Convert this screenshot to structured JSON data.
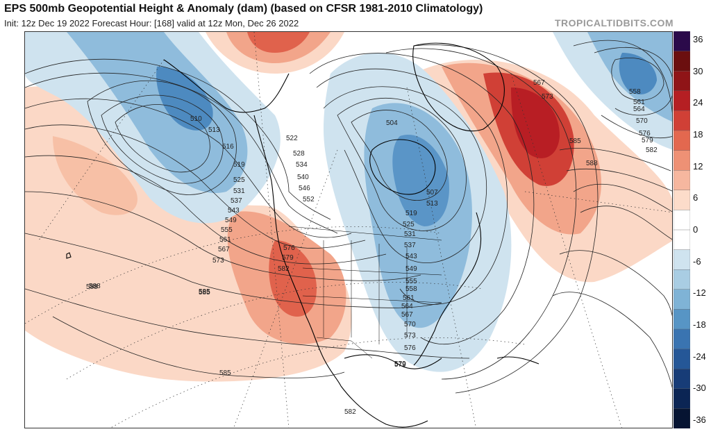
{
  "header": {
    "title": "EPS 500mb Geopotential Height & Anomaly (dam) (based on CFSR 1981-2010 Climatology)",
    "subtitle": "Init: 12z Dec 19 2022   Forecast Hour: [168]   valid at 12z Mon, Dec 26 2022",
    "brand": "TROPICALTIDBITS.COM"
  },
  "colorbar": {
    "labels": [
      "36",
      "30",
      "24",
      "18",
      "12",
      "6",
      "0",
      "-6",
      "-12",
      "-18",
      "-24",
      "-30",
      "-36"
    ],
    "colors": [
      "#2b0a4a",
      "#6b0f0f",
      "#8f1417",
      "#b51f23",
      "#d04036",
      "#e3684f",
      "#ee9175",
      "#f6b79f",
      "#fcdcca",
      "#ffffff",
      "#ffffff",
      "#cfe3ef",
      "#a9cde3",
      "#7fb3d6",
      "#5795c5",
      "#3a74b1",
      "#255797",
      "#173c77",
      "#0b2554",
      "#061432"
    ]
  },
  "contours": {
    "labels": [
      "510",
      "513",
      "516",
      "519",
      "522",
      "525",
      "528",
      "531",
      "534",
      "537",
      "540",
      "543",
      "546",
      "549",
      "552",
      "555",
      "561",
      "567",
      "573",
      "576",
      "579",
      "582",
      "585",
      "588",
      "504",
      "507",
      "513",
      "519",
      "525",
      "531",
      "537",
      "543",
      "549",
      "555",
      "558",
      "561",
      "564",
      "567",
      "570",
      "573",
      "576",
      "579",
      "567",
      "573",
      "585",
      "588",
      "558",
      "561",
      "564",
      "570",
      "576",
      "579",
      "582",
      "588",
      "585",
      "582",
      "585",
      "579"
    ]
  },
  "map": {
    "colors": {
      "ocean": "#ffffff",
      "land_outline": "#000000",
      "pos_light": "#fbd8c6",
      "pos_mid": "#f2a58a",
      "pos_strong": "#e0624c",
      "pos_max": "#b81e24",
      "neg_light": "#cfe3ef",
      "neg_mid": "#8fbcdc",
      "neg_strong": "#4d8ac0"
    }
  }
}
